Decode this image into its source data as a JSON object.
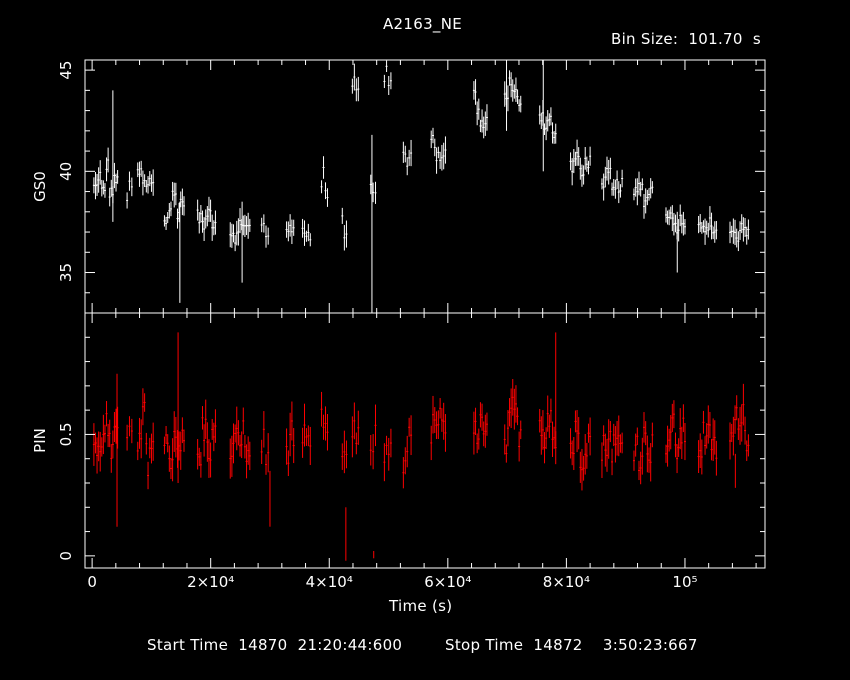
{
  "chart_data": [
    {
      "type": "scatter",
      "panel": "top",
      "title": "A2163_NE",
      "bin_size_label": "Bin Size:  101.70  s",
      "ylabel": "GS0",
      "ylim": [
        33,
        45.5
      ],
      "yticks_major": [
        35,
        40,
        45
      ],
      "xlim": [
        -1200,
        113500
      ],
      "color": "#ffffff",
      "segments": [
        {
          "x0": 300,
          "x1": 4300,
          "levels": [
            39.2,
            39.8,
            39.0,
            40.3,
            39.0,
            39.5
          ]
        },
        {
          "x0": 5900,
          "x1": 6700,
          "levels": [
            38.8,
            39.6,
            38.9
          ]
        },
        {
          "x0": 7700,
          "x1": 10300,
          "levels": [
            39.9,
            39.4,
            39.2,
            39.5
          ]
        },
        {
          "x0": 12200,
          "x1": 15500,
          "levels": [
            37.6,
            38.2,
            38.8,
            38.0,
            38.5
          ]
        },
        {
          "x0": 17800,
          "x1": 20800,
          "levels": [
            37.8,
            37.3,
            38.0,
            37.5
          ]
        },
        {
          "x0": 23300,
          "x1": 26600,
          "levels": [
            37.0,
            36.8,
            37.5,
            37.2
          ]
        },
        {
          "x0": 28600,
          "x1": 29700,
          "levels": [
            37.3,
            36.9
          ]
        },
        {
          "x0": 32800,
          "x1": 34000,
          "levels": [
            37.3,
            37.0
          ]
        },
        {
          "x0": 35500,
          "x1": 36800,
          "levels": [
            37.2,
            36.9
          ]
        },
        {
          "x0": 38700,
          "x1": 39700,
          "levels": [
            39.5,
            40.0,
            38.9
          ]
        },
        {
          "x0": 42200,
          "x1": 42900,
          "levels": [
            37.5,
            37.0
          ]
        },
        {
          "x0": 43900,
          "x1": 44900,
          "levels": [
            44.4,
            44.6,
            44.2
          ]
        },
        {
          "x0": 47000,
          "x1": 47800,
          "levels": [
            39.5,
            38.8
          ]
        },
        {
          "x0": 49300,
          "x1": 50400,
          "levels": [
            44.6,
            45.0,
            44.5
          ]
        },
        {
          "x0": 52500,
          "x1": 53800,
          "levels": [
            40.8,
            40.3,
            40.6
          ]
        },
        {
          "x0": 57200,
          "x1": 59600,
          "levels": [
            41.5,
            40.6,
            40.9
          ]
        },
        {
          "x0": 64400,
          "x1": 66600,
          "levels": [
            43.8,
            43.0,
            42.2,
            42.5
          ]
        },
        {
          "x0": 69600,
          "x1": 72300,
          "levels": [
            43.8,
            44.4,
            43.8,
            43.5
          ]
        },
        {
          "x0": 75500,
          "x1": 78200,
          "levels": [
            42.8,
            42.3,
            42.5,
            41.8
          ]
        },
        {
          "x0": 80700,
          "x1": 84000,
          "levels": [
            40.3,
            40.8,
            39.8,
            40.5
          ]
        },
        {
          "x0": 86000,
          "x1": 89400,
          "levels": [
            39.5,
            39.8,
            39.0,
            39.3
          ]
        },
        {
          "x0": 91400,
          "x1": 94500,
          "levels": [
            38.9,
            39.2,
            38.6,
            39.1
          ]
        },
        {
          "x0": 96800,
          "x1": 100000,
          "levels": [
            38.0,
            37.7,
            37.3,
            37.6
          ]
        },
        {
          "x0": 102300,
          "x1": 105300,
          "levels": [
            37.5,
            37.0,
            37.4,
            37.1
          ]
        },
        {
          "x0": 107600,
          "x1": 110700,
          "levels": [
            37.0,
            36.8,
            37.2,
            36.9
          ]
        }
      ],
      "spikes": [
        {
          "x": 3500,
          "y1": 37.5,
          "y2": 44.0
        },
        {
          "x": 14800,
          "y1": 33.5,
          "y2": 38.5
        },
        {
          "x": 25300,
          "y1": 34.5,
          "y2": 38.5
        },
        {
          "x": 47200,
          "y1": 33.0,
          "y2": 41.8
        },
        {
          "x": 69900,
          "y1": 42.0,
          "y2": 45.5
        },
        {
          "x": 76100,
          "y1": 40.0,
          "y2": 45.5
        },
        {
          "x": 98700,
          "y1": 35.0,
          "y2": 38.0
        }
      ]
    },
    {
      "type": "scatter",
      "panel": "bottom",
      "ylabel": "PIN",
      "ylim": [
        -0.05,
        1.0
      ],
      "yticks_major": [
        0,
        0.5
      ],
      "xlabel": "Time (s)",
      "xlim": [
        -1200,
        113500
      ],
      "color": "#ff0000",
      "segments": [
        {
          "x0": 300,
          "x1": 4300,
          "levels": [
            0.4,
            0.48,
            0.55,
            0.44,
            0.5
          ]
        },
        {
          "x0": 5900,
          "x1": 6700,
          "levels": [
            0.45,
            0.5
          ]
        },
        {
          "x0": 7700,
          "x1": 10300,
          "levels": [
            0.44,
            0.62,
            0.4,
            0.46
          ]
        },
        {
          "x0": 12200,
          "x1": 15500,
          "levels": [
            0.45,
            0.42,
            0.5,
            0.46
          ]
        },
        {
          "x0": 17800,
          "x1": 20800,
          "levels": [
            0.4,
            0.52,
            0.45,
            0.48
          ]
        },
        {
          "x0": 23300,
          "x1": 26600,
          "levels": [
            0.44,
            0.47,
            0.5,
            0.42
          ]
        },
        {
          "x0": 28600,
          "x1": 29700,
          "levels": [
            0.46,
            0.4
          ]
        },
        {
          "x0": 32800,
          "x1": 34000,
          "levels": [
            0.45,
            0.5
          ]
        },
        {
          "x0": 35500,
          "x1": 36800,
          "levels": [
            0.47,
            0.43
          ]
        },
        {
          "x0": 38700,
          "x1": 39700,
          "levels": [
            0.55,
            0.48
          ]
        },
        {
          "x0": 42200,
          "x1": 42900,
          "levels": [
            0.45,
            0.4
          ]
        },
        {
          "x0": 43900,
          "x1": 44900,
          "levels": [
            0.5,
            0.46
          ]
        },
        {
          "x0": 47000,
          "x1": 47800,
          "levels": [
            0.44,
            0.48
          ]
        },
        {
          "x0": 49300,
          "x1": 50400,
          "levels": [
            0.42,
            0.45
          ]
        },
        {
          "x0": 52500,
          "x1": 53800,
          "levels": [
            0.4,
            0.47
          ]
        },
        {
          "x0": 57200,
          "x1": 59600,
          "levels": [
            0.52,
            0.56,
            0.5
          ]
        },
        {
          "x0": 64400,
          "x1": 66600,
          "levels": [
            0.5,
            0.54,
            0.48
          ]
        },
        {
          "x0": 69600,
          "x1": 72300,
          "levels": [
            0.46,
            0.55,
            0.6,
            0.52
          ]
        },
        {
          "x0": 75500,
          "x1": 78200,
          "levels": [
            0.55,
            0.5,
            0.6,
            0.48
          ]
        },
        {
          "x0": 80700,
          "x1": 84000,
          "levels": [
            0.45,
            0.5,
            0.42,
            0.48
          ]
        },
        {
          "x0": 86000,
          "x1": 89400,
          "levels": [
            0.44,
            0.48,
            0.45,
            0.46
          ]
        },
        {
          "x0": 91400,
          "x1": 94500,
          "levels": [
            0.46,
            0.42,
            0.48,
            0.44
          ]
        },
        {
          "x0": 96800,
          "x1": 100000,
          "levels": [
            0.48,
            0.52,
            0.45,
            0.5
          ]
        },
        {
          "x0": 102300,
          "x1": 105300,
          "levels": [
            0.45,
            0.5,
            0.48,
            0.44
          ]
        },
        {
          "x0": 107600,
          "x1": 110700,
          "levels": [
            0.48,
            0.55,
            0.6,
            0.5
          ]
        }
      ],
      "spikes": [
        {
          "x": 4200,
          "y1": 0.12,
          "y2": 0.75
        },
        {
          "x": 14500,
          "y1": 0.3,
          "y2": 0.92
        },
        {
          "x": 30000,
          "y1": 0.12,
          "y2": 0.35
        },
        {
          "x": 42800,
          "y1": -0.02,
          "y2": 0.2
        },
        {
          "x": 47500,
          "y1": -0.01,
          "y2": 0.02
        },
        {
          "x": 78200,
          "y1": 0.45,
          "y2": 0.92
        },
        {
          "x": 108500,
          "y1": 0.28,
          "y2": 0.42
        }
      ]
    }
  ],
  "x_axis": {
    "xlabel": "Time (s)",
    "tick_labels": [
      {
        "value": 0,
        "label": "0"
      },
      {
        "value": 20000,
        "label": "2×10⁴"
      },
      {
        "value": 40000,
        "label": "4×10⁴"
      },
      {
        "value": 60000,
        "label": "6×10⁴"
      },
      {
        "value": 80000,
        "label": "8×10⁴"
      },
      {
        "value": 100000,
        "label": "10⁵"
      }
    ]
  },
  "footer": {
    "start_label": "Start Time  14870  21:20:44:600",
    "stop_label": "Stop Time  14872    3:50:23:667"
  }
}
